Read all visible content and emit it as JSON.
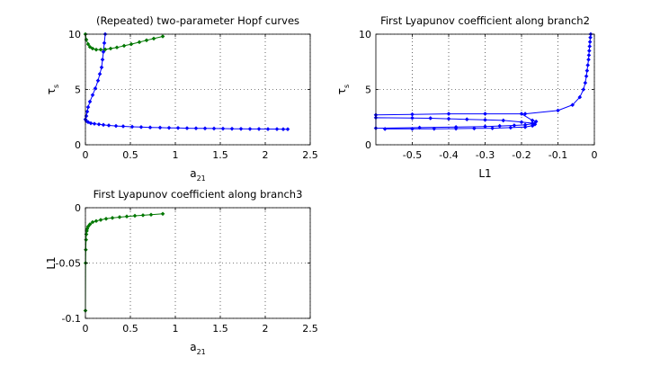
{
  "chart_data": [
    {
      "type": "line",
      "title": "(Repeated) two-parameter Hopf curves",
      "xlabel": "a",
      "xlabel_sub": "21",
      "ylabel": "τ",
      "ylabel_sub": "s",
      "xlim": [
        0,
        2.5
      ],
      "ylim": [
        0,
        10
      ],
      "xticks": [
        0,
        0.5,
        1,
        1.5,
        2,
        2.5
      ],
      "xtick_labels": [
        "0",
        "0.5",
        "1",
        "1.5",
        "2",
        "2.5"
      ],
      "yticks": [
        0,
        5,
        10
      ],
      "ytick_labels": [
        "0",
        "5",
        "10"
      ],
      "grid": true,
      "series": [
        {
          "color": "#0000ff",
          "x": [
            0.22,
            0.21,
            0.2,
            0.19,
            0.18,
            0.16,
            0.14,
            0.11,
            0.08,
            0.05,
            0.03,
            0.02,
            0.01,
            0.0,
            0.01,
            0.03,
            0.06,
            0.1,
            0.15,
            0.2,
            0.26,
            0.34,
            0.42,
            0.52,
            0.62,
            0.72,
            0.83,
            0.93,
            1.03,
            1.13,
            1.23,
            1.33,
            1.43,
            1.53,
            1.63,
            1.73,
            1.83,
            1.93,
            2.03,
            2.13,
            2.2,
            2.25
          ],
          "y": [
            10.0,
            9.2,
            8.4,
            7.7,
            7.0,
            6.4,
            5.8,
            5.1,
            4.5,
            3.9,
            3.4,
            3.0,
            2.6,
            2.3,
            2.15,
            2.05,
            1.95,
            1.9,
            1.85,
            1.8,
            1.75,
            1.7,
            1.67,
            1.63,
            1.6,
            1.57,
            1.55,
            1.53,
            1.52,
            1.5,
            1.49,
            1.48,
            1.47,
            1.46,
            1.45,
            1.44,
            1.43,
            1.43,
            1.42,
            1.42,
            1.41,
            1.41
          ]
        },
        {
          "color": "#007700",
          "x": [
            0.0,
            0.01,
            0.03,
            0.05,
            0.08,
            0.12,
            0.17,
            0.22,
            0.28,
            0.35,
            0.43,
            0.51,
            0.6,
            0.68,
            0.76,
            0.86
          ],
          "y": [
            10.0,
            9.5,
            9.1,
            8.85,
            8.7,
            8.6,
            8.6,
            8.62,
            8.7,
            8.8,
            8.95,
            9.1,
            9.28,
            9.45,
            9.6,
            9.8
          ]
        }
      ]
    },
    {
      "type": "line",
      "title": "First Lyapunov coefficient along branch2",
      "xlabel": "L1",
      "ylabel": "τ",
      "ylabel_sub": "s",
      "xlim": [
        -0.6,
        0
      ],
      "ylim": [
        0,
        10
      ],
      "xticks": [
        -0.5,
        -0.4,
        -0.3,
        -0.2,
        -0.1,
        0
      ],
      "xtick_labels": [
        "-0.5",
        "-0.4",
        "-0.3",
        "-0.2",
        "-0.1",
        "0"
      ],
      "yticks": [
        0,
        5,
        10
      ],
      "ytick_labels": [
        "0",
        "5",
        "10"
      ],
      "grid": true,
      "series": [
        {
          "color": "#0000ff",
          "x": [
            -0.6,
            -0.5,
            -0.4,
            -0.3,
            -0.2,
            -0.17,
            -0.16,
            -0.17,
            -0.19,
            -0.22,
            -0.26,
            -0.3,
            -0.38,
            -0.48,
            -0.6,
            -0.6,
            -0.5,
            -0.45,
            -0.4,
            -0.35,
            -0.3,
            -0.25,
            -0.2,
            -0.17,
            -0.163,
            -0.17,
            -0.19,
            -0.23,
            -0.28,
            -0.33,
            -0.38,
            -0.44,
            -0.5,
            -0.575
          ],
          "y": [
            2.7,
            2.75,
            2.8,
            2.8,
            2.8,
            2.2,
            2.1,
            1.9,
            1.8,
            1.75,
            1.7,
            1.65,
            1.6,
            1.55,
            1.5,
            2.45,
            2.42,
            2.4,
            2.35,
            2.3,
            2.25,
            2.2,
            2.05,
            1.95,
            1.85,
            1.72,
            1.6,
            1.55,
            1.5,
            1.48,
            1.46,
            1.45,
            1.44,
            1.43
          ]
        },
        {
          "color": "#0000ff",
          "x": [
            -0.19,
            -0.1,
            -0.06,
            -0.04,
            -0.03,
            -0.025,
            -0.022,
            -0.02,
            -0.018,
            -0.016,
            -0.015,
            -0.014,
            -0.013,
            -0.012,
            -0.011,
            -0.01
          ],
          "y": [
            2.8,
            3.1,
            3.6,
            4.3,
            5.0,
            5.6,
            6.2,
            6.7,
            7.2,
            7.7,
            8.1,
            8.5,
            8.9,
            9.3,
            9.7,
            10.0
          ]
        }
      ]
    },
    {
      "type": "line",
      "title": "First Lyapunov coefficient along branch3",
      "xlabel": "a",
      "xlabel_sub": "21",
      "ylabel": "L1",
      "xlim": [
        0,
        2.5
      ],
      "ylim": [
        -0.1,
        0
      ],
      "xticks": [
        0,
        0.5,
        1,
        1.5,
        2,
        2.5
      ],
      "xtick_labels": [
        "0",
        "0.5",
        "1",
        "1.5",
        "2",
        "2.5"
      ],
      "yticks": [
        -0.1,
        -0.05,
        0
      ],
      "ytick_labels": [
        "-0.1",
        "-0.05",
        "0"
      ],
      "grid": true,
      "series": [
        {
          "color": "#007700",
          "x": [
            0.0,
            0.002,
            0.004,
            0.007,
            0.01,
            0.015,
            0.02,
            0.03,
            0.05,
            0.08,
            0.12,
            0.17,
            0.23,
            0.3,
            0.38,
            0.46,
            0.55,
            0.64,
            0.73,
            0.86
          ],
          "y": [
            -0.093,
            -0.05,
            -0.038,
            -0.029,
            -0.024,
            -0.021,
            -0.019,
            -0.017,
            -0.015,
            -0.013,
            -0.012,
            -0.011,
            -0.01,
            -0.0092,
            -0.0085,
            -0.0079,
            -0.0073,
            -0.0068,
            -0.0063,
            -0.0055
          ]
        }
      ]
    }
  ]
}
